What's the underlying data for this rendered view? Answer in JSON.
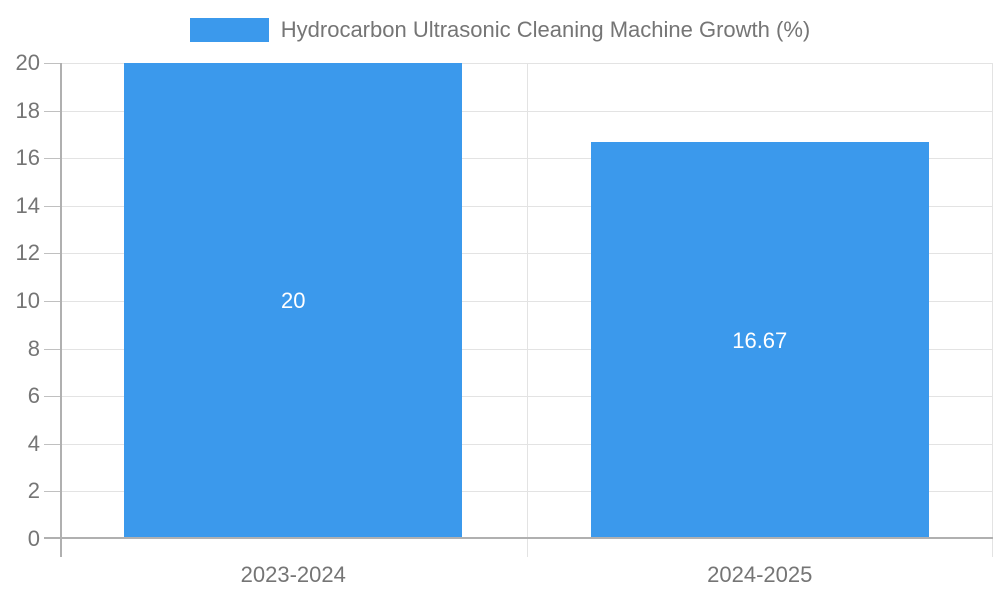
{
  "legend": {
    "label": "Hydrocarbon Ultrasonic Cleaning Machine Growth (%)"
  },
  "chart_data": {
    "type": "bar",
    "title": "Hydrocarbon Ultrasonic Cleaning Machine Growth (%)",
    "categories": [
      "2023-2024",
      "2024-2025"
    ],
    "values": [
      20,
      16.67
    ],
    "value_labels": [
      "20",
      "16.67"
    ],
    "xlabel": "",
    "ylabel": "",
    "ylim": [
      0,
      20
    ],
    "ytick_step": 2,
    "ytick_labels": [
      "0",
      "2",
      "4",
      "6",
      "8",
      "10",
      "12",
      "14",
      "16",
      "18",
      "20"
    ],
    "grid": true,
    "legend_position": "top",
    "colors": {
      "bar": "#3b99ec",
      "value_label": "#ffffff",
      "text": "#757575",
      "grid": "#e3e3e3",
      "axis": "#b0b0b0",
      "tick": "#c0c0c0",
      "background": "#ffffff"
    }
  }
}
